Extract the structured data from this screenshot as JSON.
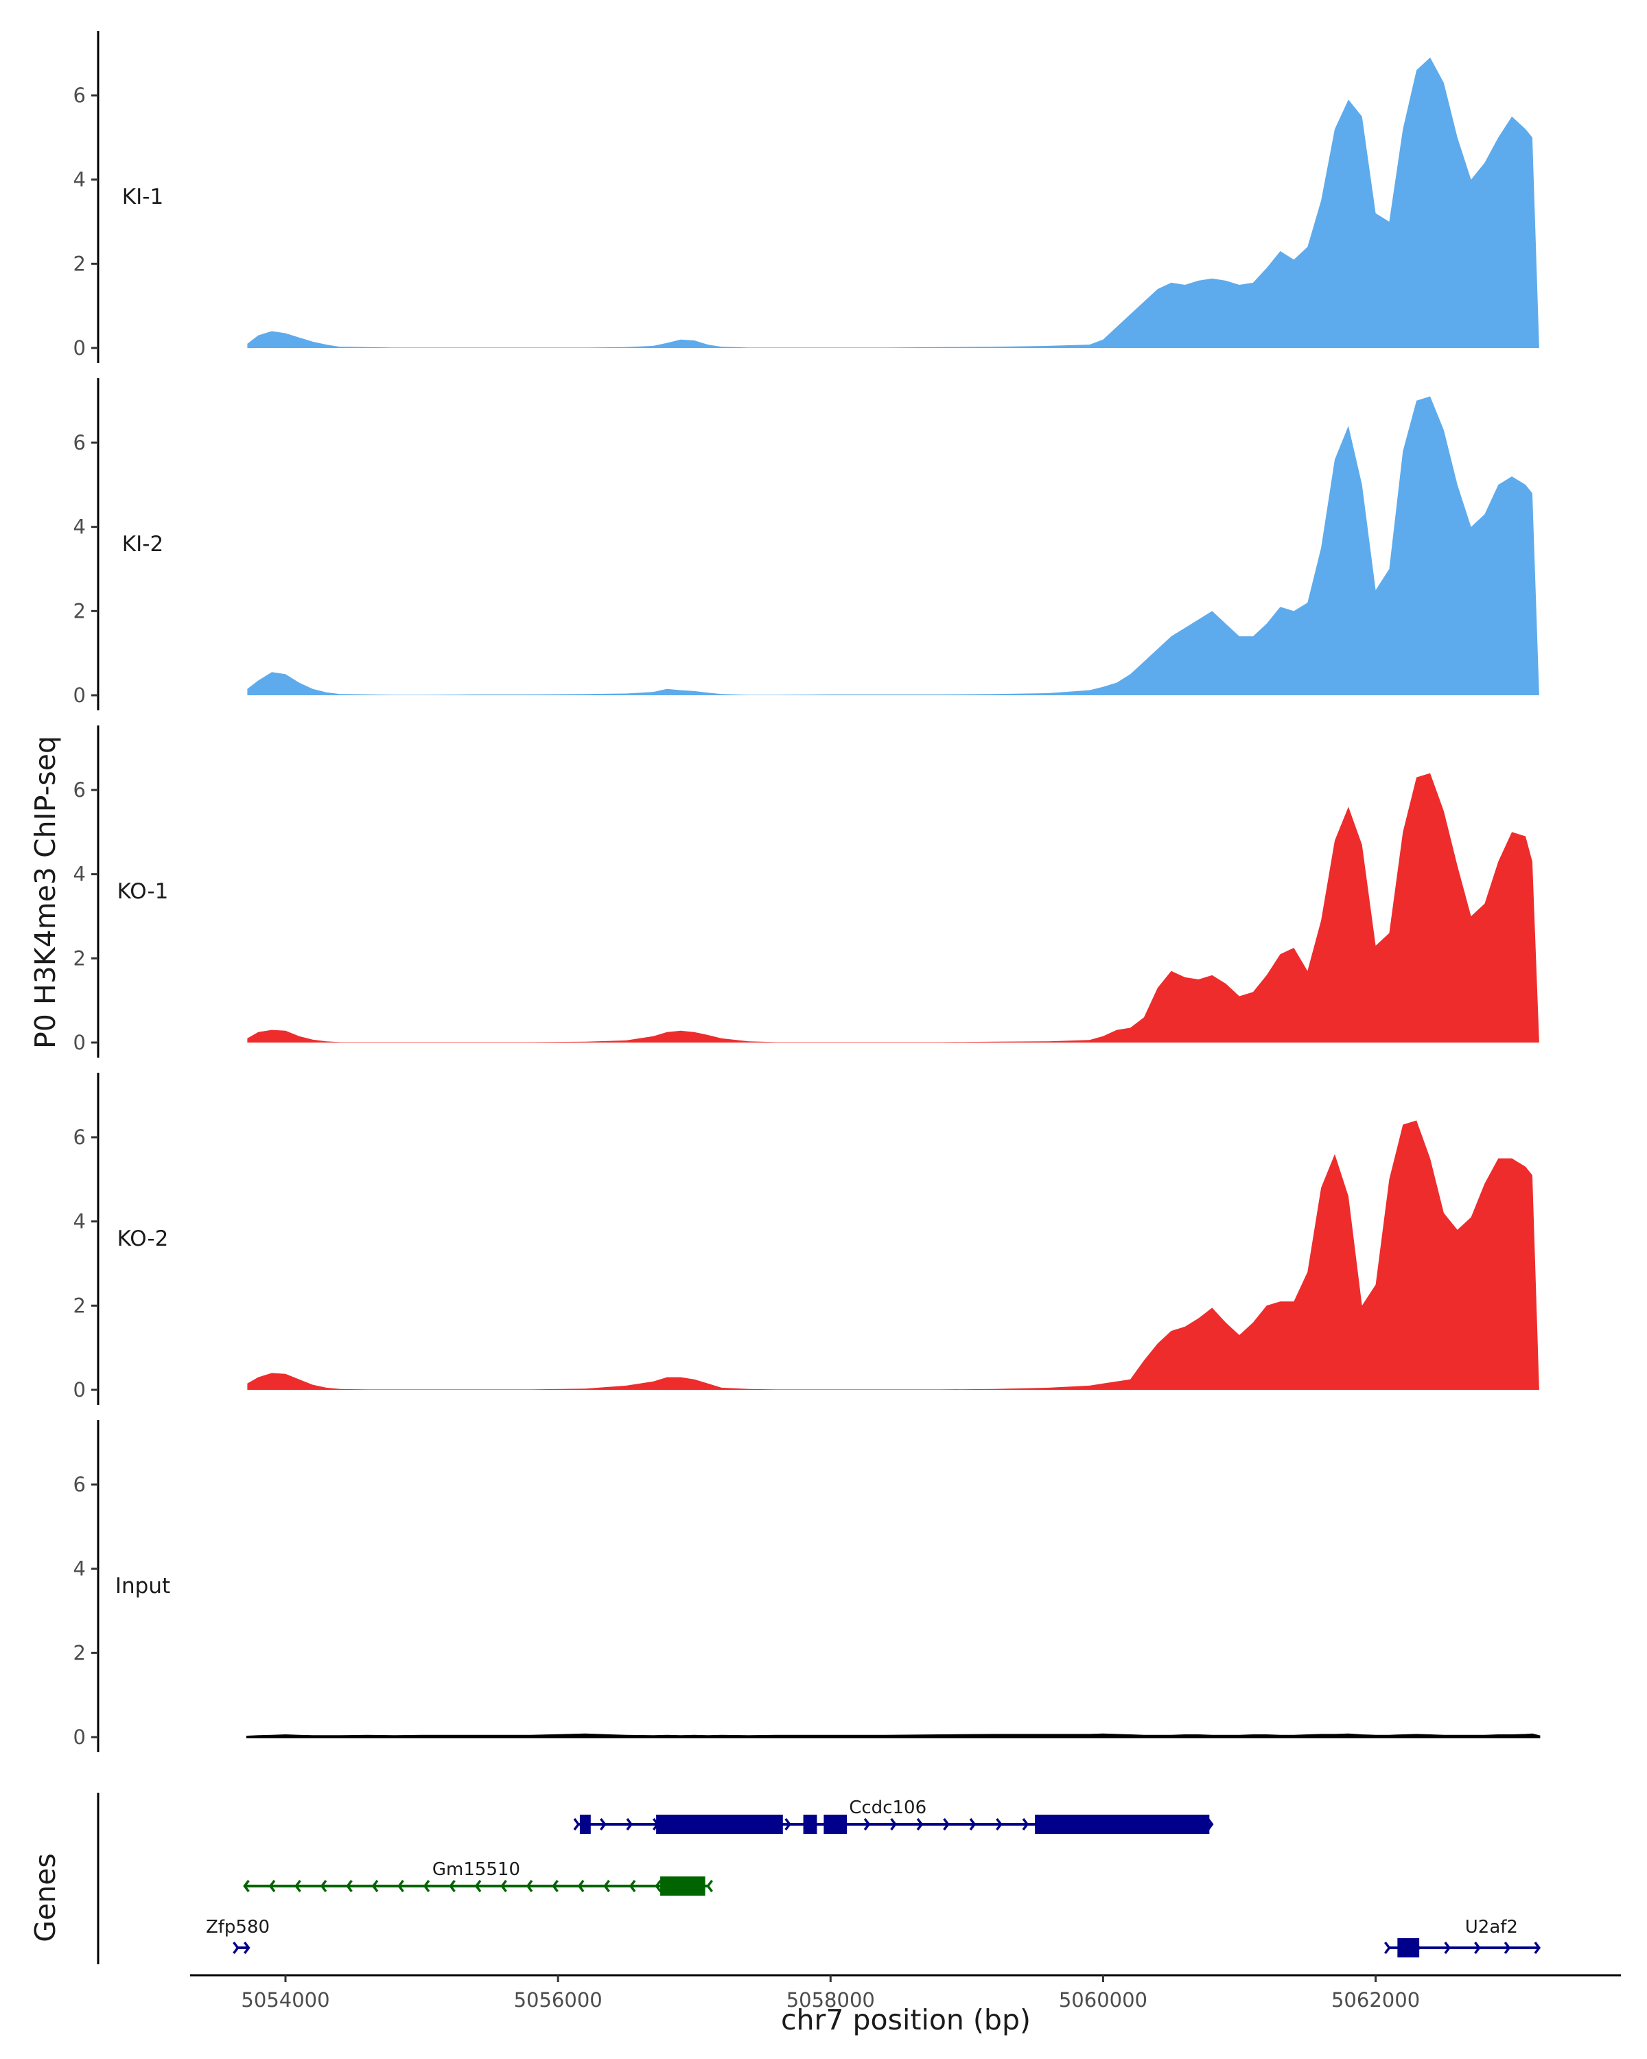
{
  "chart_data": {
    "type": "area",
    "y_axis_title": "P0 H3K4me3 ChIP-seq",
    "x_axis_title": "chr7 position (bp)",
    "genes_title": "Genes",
    "ylim": [
      0,
      7.5
    ],
    "y_ticks": [
      0,
      2,
      4,
      6
    ],
    "xlim": [
      5053300,
      5063800
    ],
    "x_ticks": [
      {
        "value": 5054000,
        "label": "5054000"
      },
      {
        "value": 5056000,
        "label": "5056000"
      },
      {
        "value": 5058000,
        "label": "5058000"
      },
      {
        "value": 5060000,
        "label": "5060000"
      },
      {
        "value": 5062000,
        "label": "5062000"
      }
    ],
    "grid": false,
    "x": [
      5053720,
      5053800,
      5053900,
      5054000,
      5054100,
      5054200,
      5054300,
      5054400,
      5054600,
      5054800,
      5055000,
      5055400,
      5055800,
      5056200,
      5056500,
      5056700,
      5056800,
      5056900,
      5057000,
      5057100,
      5057200,
      5057400,
      5057600,
      5058000,
      5058400,
      5058800,
      5059200,
      5059600,
      5059900,
      5060000,
      5060100,
      5060200,
      5060300,
      5060400,
      5060500,
      5060600,
      5060700,
      5060800,
      5060900,
      5061000,
      5061100,
      5061200,
      5061300,
      5061400,
      5061500,
      5061600,
      5061700,
      5061800,
      5061900,
      5062000,
      5062100,
      5062200,
      5062300,
      5062400,
      5062500,
      5062600,
      5062700,
      5062800,
      5062900,
      5063000,
      5063100,
      5063150,
      5063200
    ],
    "series": [
      {
        "name": "KI-1",
        "color": "#5dabec",
        "values": [
          0.1,
          0.3,
          0.4,
          0.35,
          0.25,
          0.15,
          0.08,
          0.03,
          0.02,
          0.01,
          0.01,
          0.01,
          0.01,
          0.01,
          0.02,
          0.05,
          0.12,
          0.2,
          0.18,
          0.08,
          0.03,
          0.01,
          0.01,
          0.01,
          0.01,
          0.02,
          0.03,
          0.05,
          0.08,
          0.2,
          0.5,
          0.8,
          1.1,
          1.4,
          1.55,
          1.5,
          1.6,
          1.65,
          1.6,
          1.5,
          1.55,
          1.9,
          2.3,
          2.1,
          2.4,
          3.5,
          5.2,
          5.9,
          5.5,
          3.2,
          3.0,
          5.2,
          6.6,
          6.9,
          6.3,
          5.0,
          4.0,
          4.4,
          5.0,
          5.5,
          5.2,
          5.0,
          0
        ]
      },
      {
        "name": "KI-2",
        "color": "#5dabec",
        "values": [
          0.15,
          0.35,
          0.55,
          0.5,
          0.3,
          0.15,
          0.07,
          0.03,
          0.02,
          0.01,
          0.01,
          0.02,
          0.02,
          0.03,
          0.04,
          0.08,
          0.15,
          0.12,
          0.1,
          0.06,
          0.03,
          0.01,
          0.01,
          0.02,
          0.02,
          0.02,
          0.03,
          0.05,
          0.12,
          0.2,
          0.3,
          0.5,
          0.8,
          1.1,
          1.4,
          1.6,
          1.8,
          2.0,
          1.7,
          1.4,
          1.4,
          1.7,
          2.1,
          2.0,
          2.2,
          3.5,
          5.6,
          6.4,
          5.0,
          2.5,
          3.0,
          5.8,
          7.0,
          7.1,
          6.3,
          5.0,
          4.0,
          4.3,
          5.0,
          5.2,
          5.0,
          4.8,
          0
        ]
      },
      {
        "name": "KO-1",
        "color": "#ee2c2c",
        "values": [
          0.1,
          0.25,
          0.3,
          0.28,
          0.15,
          0.07,
          0.03,
          0.01,
          0.01,
          0.01,
          0.01,
          0.01,
          0.01,
          0.02,
          0.05,
          0.15,
          0.25,
          0.28,
          0.25,
          0.18,
          0.1,
          0.03,
          0.01,
          0.01,
          0.01,
          0.01,
          0.02,
          0.03,
          0.06,
          0.15,
          0.3,
          0.35,
          0.6,
          1.3,
          1.7,
          1.55,
          1.5,
          1.6,
          1.4,
          1.1,
          1.2,
          1.6,
          2.1,
          2.25,
          1.7,
          2.9,
          4.8,
          5.6,
          4.7,
          2.3,
          2.6,
          5.0,
          6.3,
          6.4,
          5.5,
          4.2,
          3.0,
          3.3,
          4.3,
          5.0,
          4.9,
          4.3,
          0
        ]
      },
      {
        "name": "KO-2",
        "color": "#ee2c2c",
        "values": [
          0.15,
          0.3,
          0.4,
          0.38,
          0.25,
          0.12,
          0.05,
          0.02,
          0.01,
          0.01,
          0.01,
          0.01,
          0.01,
          0.03,
          0.1,
          0.2,
          0.3,
          0.3,
          0.25,
          0.15,
          0.05,
          0.02,
          0.01,
          0.01,
          0.01,
          0.01,
          0.02,
          0.05,
          0.1,
          0.15,
          0.2,
          0.25,
          0.7,
          1.1,
          1.4,
          1.5,
          1.7,
          1.95,
          1.6,
          1.3,
          1.6,
          2.0,
          2.1,
          2.1,
          2.8,
          4.8,
          5.6,
          4.6,
          2.0,
          2.5,
          5.0,
          6.3,
          6.4,
          5.5,
          4.2,
          3.8,
          4.1,
          4.9,
          5.5,
          5.5,
          5.3,
          5.1,
          0
        ]
      },
      {
        "name": "Input",
        "color": "#000000",
        "values": [
          0.01,
          0.02,
          0.03,
          0.04,
          0.03,
          0.02,
          0.02,
          0.02,
          0.03,
          0.02,
          0.03,
          0.03,
          0.03,
          0.06,
          0.03,
          0.02,
          0.03,
          0.02,
          0.03,
          0.02,
          0.03,
          0.02,
          0.03,
          0.03,
          0.03,
          0.04,
          0.05,
          0.05,
          0.05,
          0.06,
          0.05,
          0.04,
          0.03,
          0.03,
          0.03,
          0.04,
          0.04,
          0.03,
          0.03,
          0.03,
          0.04,
          0.04,
          0.03,
          0.03,
          0.04,
          0.05,
          0.05,
          0.06,
          0.04,
          0.03,
          0.03,
          0.04,
          0.05,
          0.04,
          0.03,
          0.03,
          0.03,
          0.03,
          0.04,
          0.04,
          0.05,
          0.06,
          0.02
        ]
      }
    ],
    "genes": [
      {
        "name": "Ccdc106",
        "color": "#00008b",
        "strand": "+",
        "start": 5056150,
        "end": 5060800,
        "exons": [
          [
            5056160,
            5056240
          ],
          [
            5056720,
            5057650
          ],
          [
            5057800,
            5057900
          ],
          [
            5057950,
            5058120
          ],
          [
            5059500,
            5060780
          ]
        ]
      },
      {
        "name": "Gm15510",
        "color": "#006400",
        "strand": "-",
        "start": 5053700,
        "end": 5057100,
        "exons": [
          [
            5056750,
            5057080
          ]
        ]
      },
      {
        "name": "Zfp580",
        "color": "#00008b",
        "strand": "+",
        "start": 5053650,
        "end": 5053730,
        "exons": []
      },
      {
        "name": "U2af2",
        "color": "#00008b",
        "strand": "+",
        "start": 5062100,
        "end": 5063200,
        "exons": [
          [
            5062160,
            5062320
          ]
        ]
      }
    ]
  }
}
